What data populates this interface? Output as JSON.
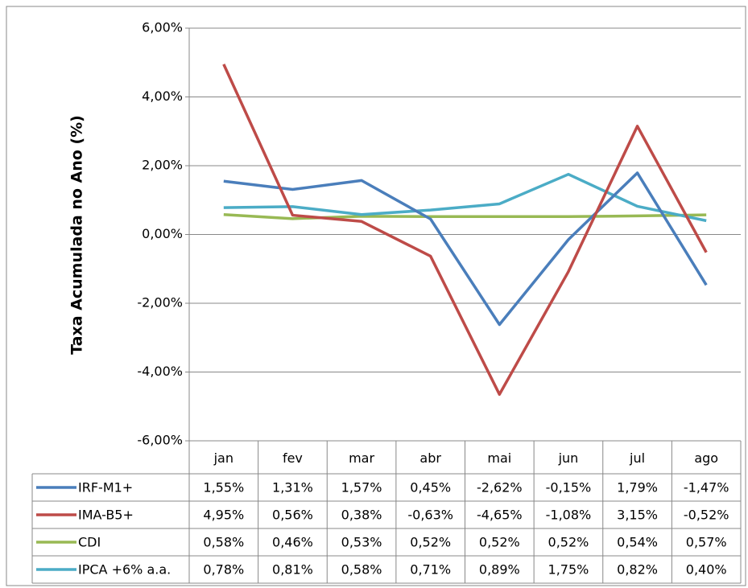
{
  "chart_data": {
    "type": "line",
    "y_label": "Taxa Acumulada no Ano (%)",
    "categories": [
      "jan",
      "fev",
      "mar",
      "abr",
      "mai",
      "jun",
      "jul",
      "ago"
    ],
    "series": [
      {
        "name": "IRF-M1+",
        "color": "#4a7ebb",
        "values": [
          1.55,
          1.31,
          1.57,
          0.45,
          -2.62,
          -0.15,
          1.79,
          -1.47
        ],
        "value_labels": [
          "1,55%",
          "1,31%",
          "1,57%",
          "0,45%",
          "-2,62%",
          "-0,15%",
          "1,79%",
          "-1,47%"
        ]
      },
      {
        "name": "IMA-B5+",
        "color": "#be4b48",
        "values": [
          4.95,
          0.56,
          0.38,
          -0.63,
          -4.65,
          -1.08,
          3.15,
          -0.52
        ],
        "value_labels": [
          "4,95%",
          "0,56%",
          "0,38%",
          "-0,63%",
          "-4,65%",
          "-1,08%",
          "3,15%",
          "-0,52%"
        ]
      },
      {
        "name": "CDI",
        "color": "#98b954",
        "values": [
          0.58,
          0.46,
          0.53,
          0.52,
          0.52,
          0.52,
          0.54,
          0.57
        ],
        "value_labels": [
          "0,58%",
          "0,46%",
          "0,53%",
          "0,52%",
          "0,52%",
          "0,52%",
          "0,54%",
          "0,57%"
        ]
      },
      {
        "name": "IPCA +6% a.a.",
        "color": "#4bacc6",
        "values": [
          0.78,
          0.81,
          0.58,
          0.71,
          0.89,
          1.75,
          0.82,
          0.4
        ],
        "value_labels": [
          "0,78%",
          "0,81%",
          "0,58%",
          "0,71%",
          "0,89%",
          "1,75%",
          "0,82%",
          "0,40%"
        ]
      }
    ],
    "ylim": [
      -6,
      6
    ],
    "yticks": [
      {
        "value": -6,
        "label": "-6,00%"
      },
      {
        "value": -4,
        "label": "-4,00%"
      },
      {
        "value": -2,
        "label": "-2,00%"
      },
      {
        "value": 0,
        "label": "0,00%"
      },
      {
        "value": 2,
        "label": "2,00%"
      },
      {
        "value": 4,
        "label": "4,00%"
      },
      {
        "value": 6,
        "label": "6,00%"
      }
    ],
    "grid": true
  }
}
